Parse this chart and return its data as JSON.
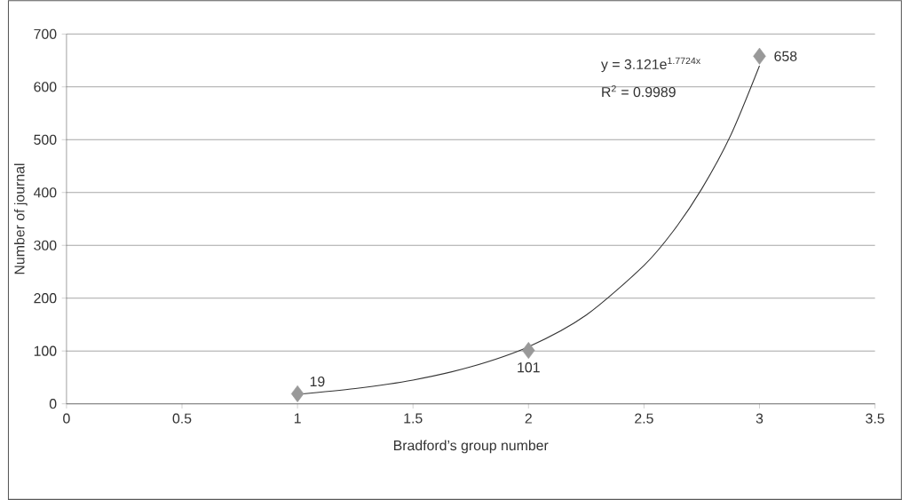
{
  "chart_data": {
    "type": "scatter",
    "xlabel": "Bradford’s group number",
    "ylabel": "Number of journal",
    "xlim": [
      0,
      3.5
    ],
    "xticks": [
      0,
      0.5,
      1,
      1.5,
      2,
      2.5,
      3,
      3.5
    ],
    "ylim": [
      0,
      700
    ],
    "yticks": [
      0,
      100,
      200,
      300,
      400,
      500,
      600,
      700
    ],
    "grid": "y",
    "annotations": [
      "y = 3.121e$^{1.7724x}$",
      "R$^{2}$ = 0.9989"
    ],
    "series": [
      {
        "type": "line",
        "color": "#333333",
        "x": [
          1,
          1.25,
          1.5,
          1.75,
          2,
          2.25,
          2.5,
          2.625,
          2.75,
          2.875,
          3
        ],
        "values": [
          18,
          29,
          45,
          70,
          108,
          168,
          262,
          326,
          407,
          508,
          640
        ]
      },
      {
        "marker": "diamond",
        "color": "#999999",
        "x": [
          1,
          2,
          3
        ],
        "values": [
          19,
          101,
          658
        ],
        "value_labels": [
          "19",
          "101",
          "658"
        ]
      }
    ]
  }
}
